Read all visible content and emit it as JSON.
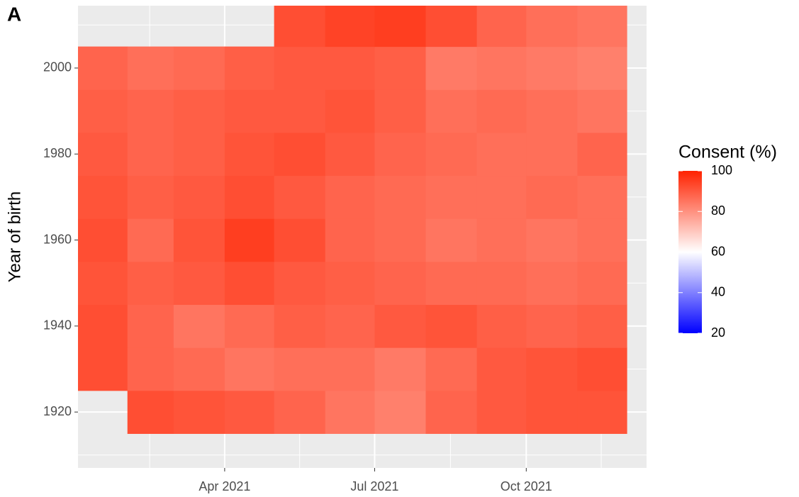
{
  "chart_data": {
    "type": "heatmap",
    "panel_label": "A",
    "ylabel": "Year of birth",
    "legend_title": "Consent (%)",
    "x": [
      "2021-01",
      "2021-02",
      "2021-03",
      "2021-04",
      "2021-05",
      "2021-06",
      "2021-07",
      "2021-08",
      "2021-09",
      "2021-10",
      "2021-11"
    ],
    "y": [
      1915,
      1925,
      1935,
      1945,
      1955,
      1965,
      1975,
      1985,
      1995,
      2005
    ],
    "ybin": 10,
    "values": [
      [
        null,
        92,
        91,
        90,
        88,
        85,
        83,
        88,
        90,
        91,
        91
      ],
      [
        92,
        88,
        87,
        85,
        86,
        86,
        84,
        87,
        90,
        91,
        92
      ],
      [
        92,
        88,
        85,
        87,
        89,
        88,
        90,
        91,
        89,
        88,
        89
      ],
      [
        91,
        89,
        90,
        92,
        90,
        89,
        88,
        87,
        87,
        86,
        87
      ],
      [
        92,
        87,
        91,
        95,
        92,
        88,
        87,
        85,
        86,
        85,
        86
      ],
      [
        91,
        89,
        90,
        92,
        90,
        88,
        87,
        86,
        86,
        87,
        86
      ],
      [
        90,
        88,
        89,
        91,
        92,
        90,
        88,
        87,
        86,
        86,
        88
      ],
      [
        89,
        88,
        89,
        90,
        90,
        91,
        89,
        86,
        87,
        86,
        85
      ],
      [
        88,
        86,
        87,
        89,
        90,
        90,
        89,
        84,
        85,
        84,
        83
      ],
      [
        null,
        null,
        null,
        null,
        92,
        94,
        95,
        92,
        88,
        86,
        85
      ]
    ],
    "xlim": [
      "2021-01-02",
      "2021-12-13"
    ],
    "xticks": [
      {
        "value": "2021-04-01",
        "label": "Apr 2021"
      },
      {
        "value": "2021-07-01",
        "label": "Jul 2021"
      },
      {
        "value": "2021-10-01",
        "label": "Oct 2021"
      }
    ],
    "ylim": [
      1907,
      2014.5
    ],
    "yticks": [
      1920,
      1940,
      1960,
      1980,
      2000
    ],
    "colorscale": [
      {
        "value": 20,
        "color": "#0000ff"
      },
      {
        "value": 60,
        "color": "#ffffff"
      },
      {
        "value": 100,
        "color": "#ff2200"
      }
    ],
    "legend_ticks": [
      20,
      40,
      60,
      80,
      100
    ],
    "grid": true
  }
}
